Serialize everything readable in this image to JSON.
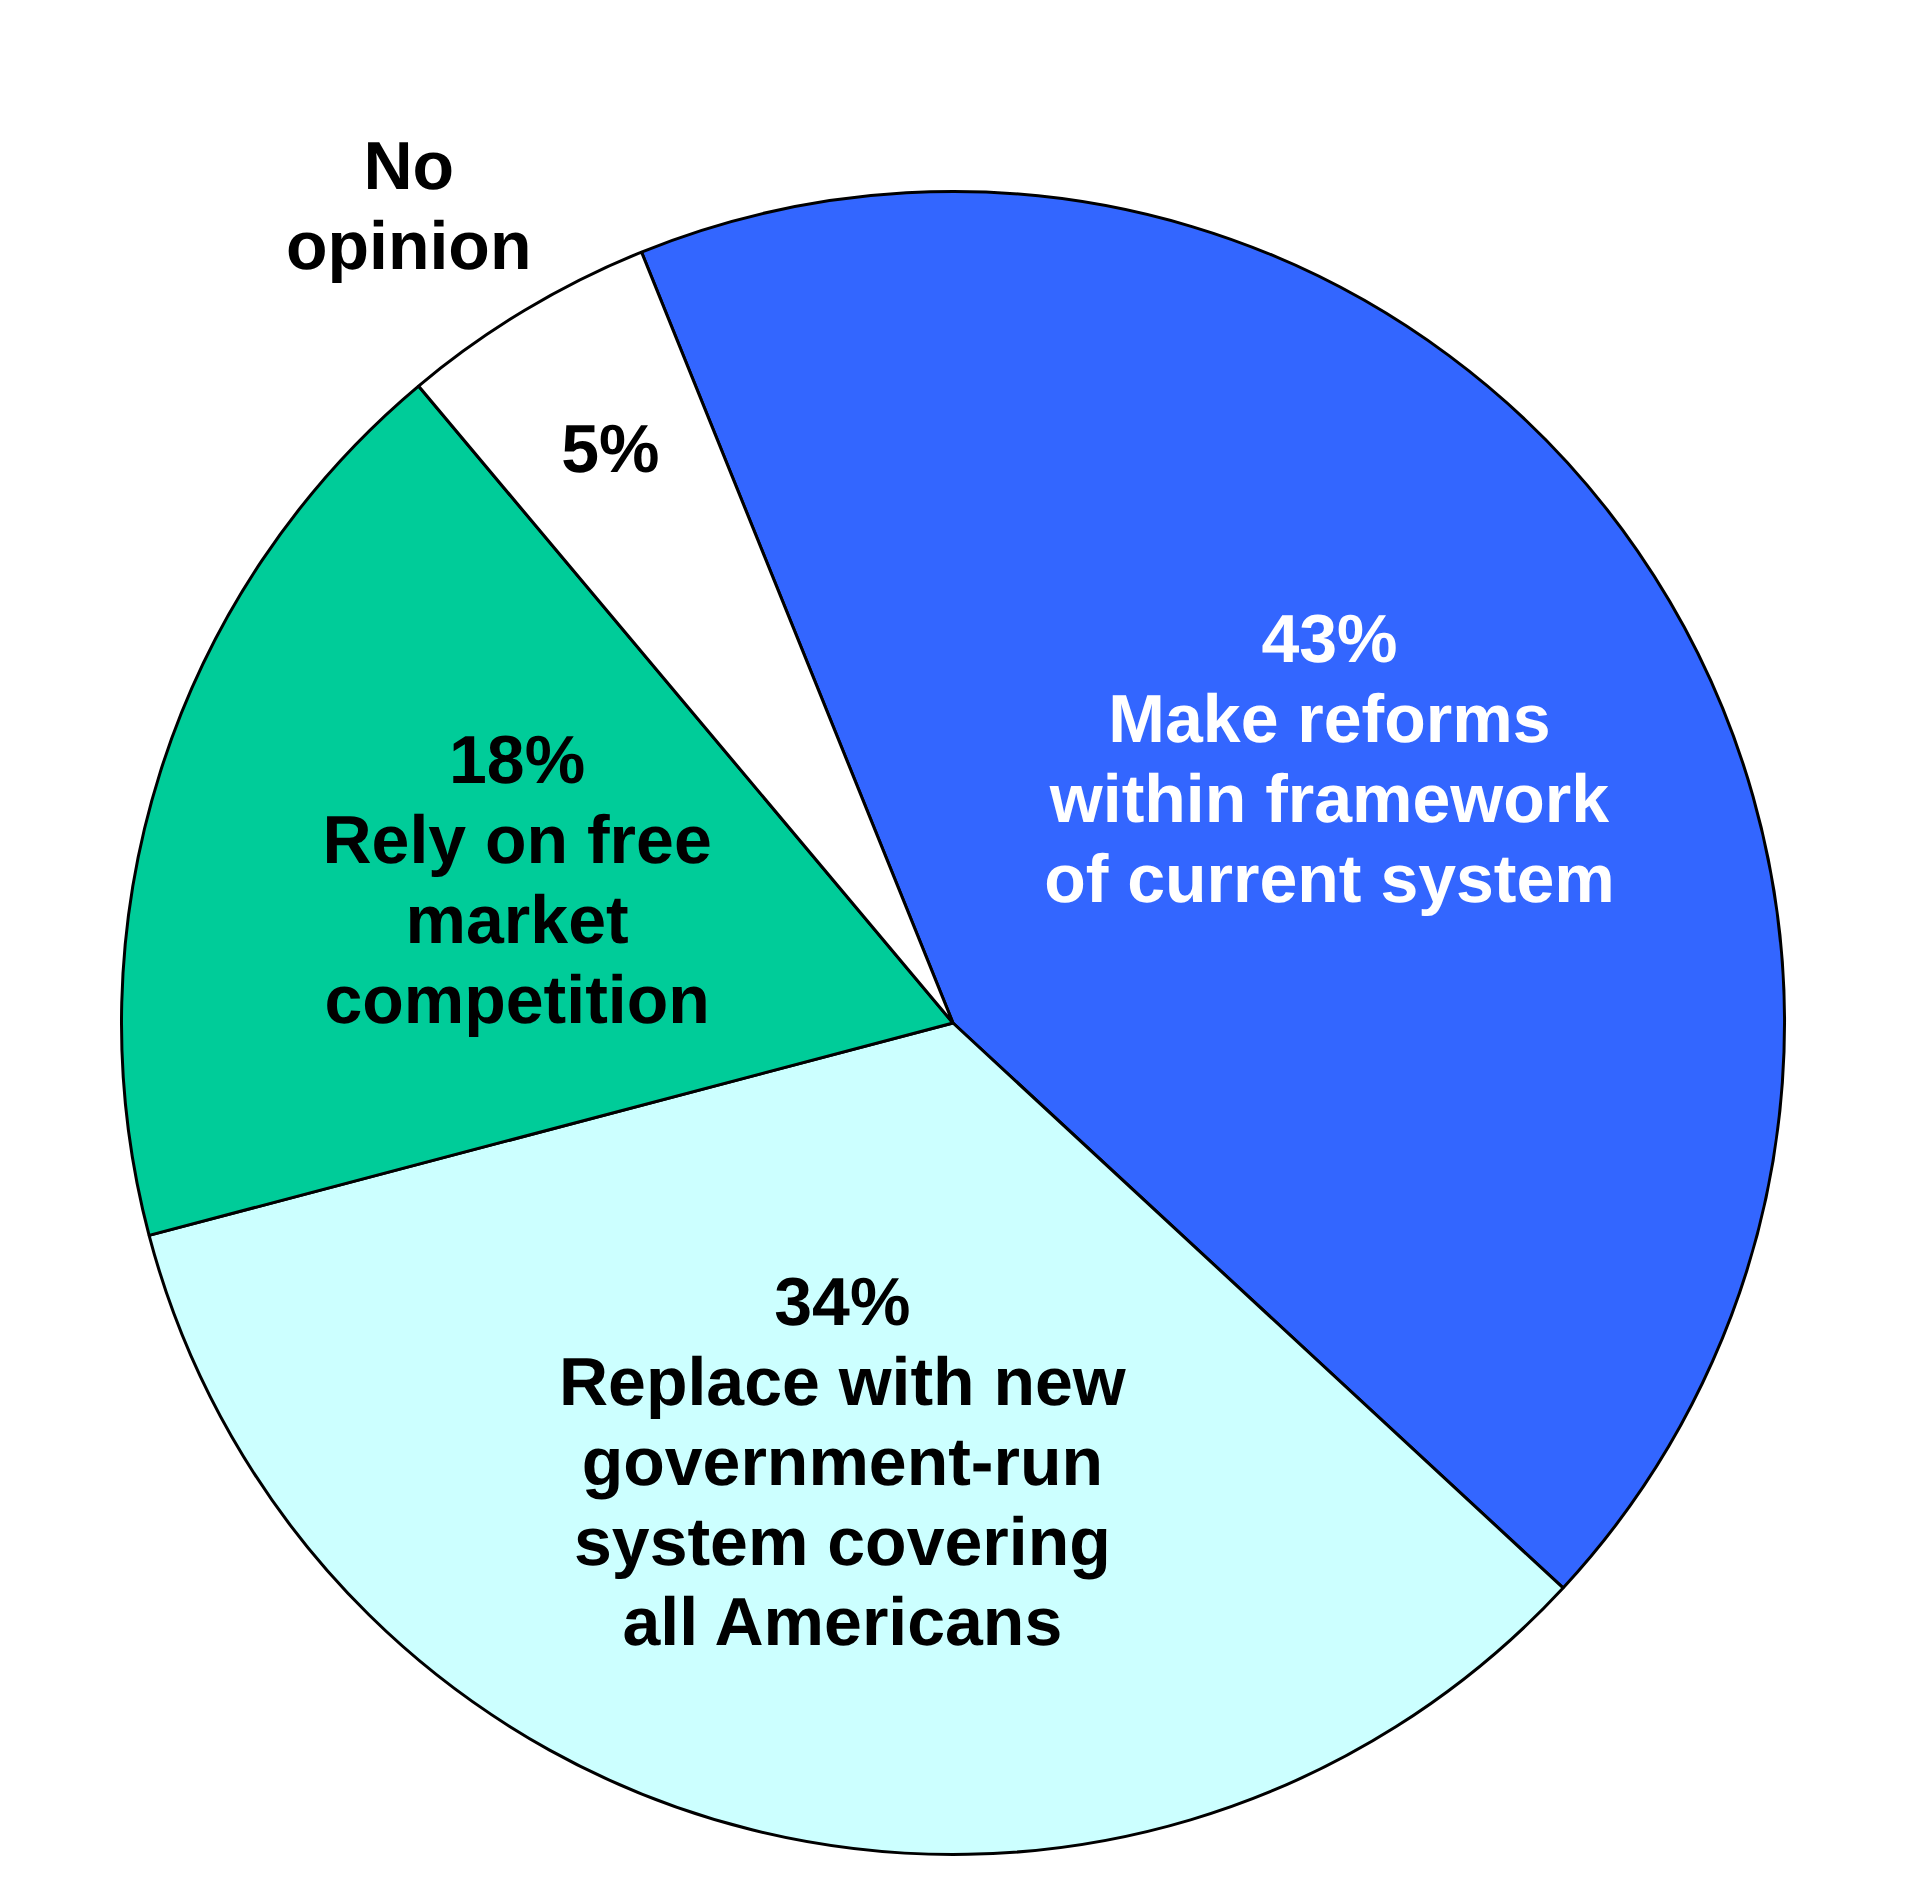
{
  "chart_data": {
    "type": "pie",
    "categories": [
      "Make reforms within framework of current system",
      "Replace with new government-run system covering all Americans",
      "Rely on free market competition",
      "No opinion"
    ],
    "values": [
      43,
      34,
      18,
      5
    ],
    "colors": [
      "#3366ff",
      "#ccffff",
      "#00cc99",
      "#ffffff"
    ],
    "value_labels": [
      "43%",
      "34%",
      "18%",
      "5%"
    ],
    "legend": false
  }
}
